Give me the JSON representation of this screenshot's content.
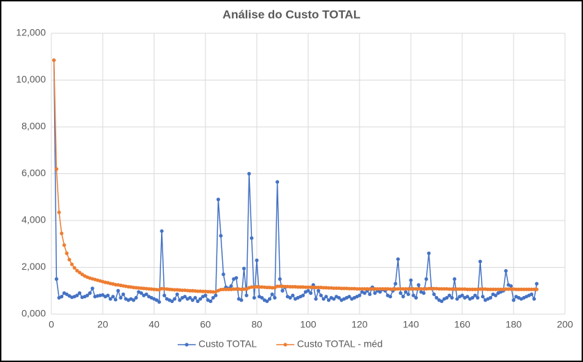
{
  "chart_data": {
    "type": "line",
    "title": "Análise do Custo TOTAL",
    "x": [
      1,
      2,
      3,
      4,
      5,
      6,
      7,
      8,
      9,
      10,
      11,
      12,
      13,
      14,
      15,
      16,
      17,
      18,
      19,
      20,
      21,
      22,
      23,
      24,
      25,
      26,
      27,
      28,
      29,
      30,
      31,
      32,
      33,
      34,
      35,
      36,
      37,
      38,
      39,
      40,
      41,
      42,
      43,
      44,
      45,
      46,
      47,
      48,
      49,
      50,
      51,
      52,
      53,
      54,
      55,
      56,
      57,
      58,
      59,
      60,
      61,
      62,
      63,
      64,
      65,
      66,
      67,
      68,
      69,
      70,
      71,
      72,
      73,
      74,
      75,
      76,
      77,
      78,
      79,
      80,
      81,
      82,
      83,
      84,
      85,
      86,
      87,
      88,
      89,
      90,
      91,
      92,
      93,
      94,
      95,
      96,
      97,
      98,
      99,
      100,
      101,
      102,
      103,
      104,
      105,
      106,
      107,
      108,
      109,
      110,
      111,
      112,
      113,
      114,
      115,
      116,
      117,
      118,
      119,
      120,
      121,
      122,
      123,
      124,
      125,
      126,
      127,
      128,
      129,
      130,
      131,
      132,
      133,
      134,
      135,
      136,
      137,
      138,
      139,
      140,
      141,
      142,
      143,
      144,
      145,
      146,
      147,
      148,
      149,
      150,
      151,
      152,
      153,
      154,
      155,
      156,
      157,
      158,
      159,
      160,
      161,
      162,
      163,
      164,
      165,
      166,
      167,
      168,
      169,
      170,
      171,
      172,
      173,
      174,
      175,
      176,
      177,
      178,
      179,
      180,
      181,
      182,
      183,
      184,
      185,
      186,
      187,
      188,
      189
    ],
    "series": [
      {
        "name": "Custo TOTAL",
        "color": "#4472c4",
        "values": [
          10850,
          1500,
          700,
          750,
          900,
          850,
          780,
          720,
          750,
          800,
          900,
          720,
          750,
          800,
          900,
          1100,
          750,
          780,
          800,
          820,
          750,
          800,
          650,
          750,
          620,
          1000,
          700,
          850,
          650,
          600,
          650,
          600,
          700,
          950,
          900,
          800,
          850,
          750,
          700,
          650,
          600,
          520,
          3550,
          800,
          650,
          600,
          550,
          650,
          850,
          600,
          700,
          750,
          650,
          700,
          600,
          700,
          550,
          650,
          750,
          800,
          600,
          550,
          700,
          800,
          4900,
          3350,
          1700,
          1150,
          1100,
          1200,
          1500,
          1550,
          650,
          600,
          1950,
          800,
          6000,
          3250,
          700,
          2300,
          750,
          700,
          600,
          550,
          650,
          850,
          700,
          5650,
          1500,
          1000,
          1150,
          750,
          700,
          800,
          650,
          700,
          750,
          800,
          950,
          1000,
          900,
          1250,
          650,
          1000,
          800,
          650,
          750,
          600,
          700,
          650,
          750,
          700,
          600,
          650,
          700,
          750,
          650,
          700,
          750,
          800,
          950,
          900,
          1000,
          850,
          1150,
          900,
          1000,
          950,
          1050,
          1000,
          800,
          750,
          1000,
          1300,
          2350,
          900,
          750,
          950,
          850,
          1450,
          800,
          700,
          1250,
          950,
          900,
          1500,
          2600,
          1100,
          850,
          700,
          600,
          550,
          650,
          700,
          800,
          700,
          1500,
          650,
          750,
          800,
          700,
          750,
          650,
          700,
          800,
          700,
          2250,
          750,
          600,
          650,
          700,
          850,
          800,
          900,
          950,
          1000,
          1850,
          1250,
          1200,
          600,
          750,
          700,
          650,
          700,
          750,
          800,
          850,
          650,
          1300
        ]
      },
      {
        "name": "Custo TOTAL - méd",
        "color": "#ed7d31",
        "values": [
          10850,
          6200,
          4350,
          3450,
          2950,
          2600,
          2330,
          2130,
          1980,
          1860,
          1780,
          1700,
          1630,
          1580,
          1540,
          1510,
          1480,
          1450,
          1420,
          1390,
          1360,
          1340,
          1310,
          1290,
          1260,
          1250,
          1230,
          1210,
          1190,
          1170,
          1160,
          1140,
          1130,
          1120,
          1110,
          1100,
          1090,
          1080,
          1070,
          1060,
          1050,
          1040,
          1090,
          1080,
          1070,
          1060,
          1050,
          1040,
          1040,
          1030,
          1020,
          1020,
          1010,
          1000,
          1000,
          990,
          980,
          980,
          970,
          970,
          960,
          960,
          950,
          950,
          1010,
          1050,
          1060,
          1060,
          1060,
          1060,
          1070,
          1070,
          1070,
          1060,
          1070,
          1070,
          1130,
          1160,
          1150,
          1170,
          1160,
          1160,
          1150,
          1140,
          1140,
          1130,
          1130,
          1190,
          1190,
          1190,
          1180,
          1180,
          1170,
          1170,
          1170,
          1160,
          1160,
          1160,
          1150,
          1150,
          1150,
          1150,
          1140,
          1140,
          1140,
          1130,
          1130,
          1120,
          1120,
          1110,
          1110,
          1110,
          1100,
          1100,
          1100,
          1090,
          1090,
          1090,
          1080,
          1080,
          1080,
          1080,
          1080,
          1080,
          1080,
          1080,
          1080,
          1080,
          1080,
          1080,
          1080,
          1070,
          1070,
          1070,
          1080,
          1080,
          1080,
          1080,
          1080,
          1080,
          1080,
          1080,
          1080,
          1080,
          1080,
          1080,
          1090,
          1090,
          1090,
          1090,
          1080,
          1080,
          1080,
          1080,
          1070,
          1070,
          1070,
          1070,
          1070,
          1070,
          1070,
          1060,
          1060,
          1060,
          1060,
          1060,
          1070,
          1070,
          1070,
          1060,
          1060,
          1060,
          1060,
          1060,
          1060,
          1060,
          1070,
          1070,
          1070,
          1070,
          1060,
          1060,
          1060,
          1060,
          1060,
          1060,
          1060,
          1060,
          1060
        ]
      }
    ],
    "xlim": [
      0,
      200
    ],
    "xticks": [
      0,
      20,
      40,
      60,
      80,
      100,
      120,
      140,
      160,
      180,
      200
    ],
    "ylim": [
      0,
      12000
    ],
    "yticks": [
      {
        "value": 0,
        "label": "0,000"
      },
      {
        "value": 2000,
        "label": "2,000"
      },
      {
        "value": 4000,
        "label": "4,000"
      },
      {
        "value": 6000,
        "label": "6,000"
      },
      {
        "value": 8000,
        "label": "8,000"
      },
      {
        "value": 10000,
        "label": "10,000"
      },
      {
        "value": 12000,
        "label": "12,000"
      }
    ],
    "grid": true,
    "legend": "bottom"
  }
}
